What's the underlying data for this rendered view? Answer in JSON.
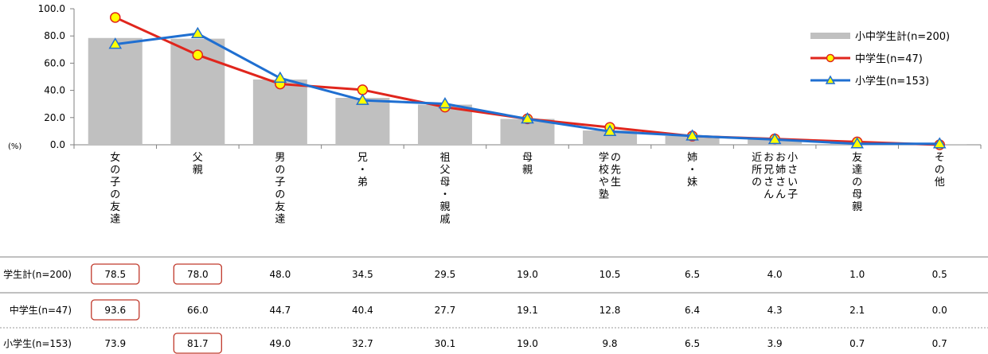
{
  "chart_data": {
    "type": "bar",
    "unit_label": "(%)",
    "ylim": [
      0,
      100
    ],
    "yticks": [
      "100.0",
      "80.0",
      "60.0",
      "40.0",
      "20.0",
      "0.0"
    ],
    "categories": [
      [
        "女の子の友達"
      ],
      [
        "父親"
      ],
      [
        "男の子の友達"
      ],
      [
        "兄・弟"
      ],
      [
        "祖父母・親戚"
      ],
      [
        "母親"
      ],
      [
        "の先生",
        "学校や塾"
      ],
      [
        "姉・妹"
      ],
      [
        "小さい子",
        "お姉さん",
        "お兄さん",
        "近所の"
      ],
      [
        "友達の母親"
      ],
      [
        "その他"
      ]
    ],
    "series": [
      {
        "name": "小中学生計(n=200)",
        "row_label": "学生計(n=200)",
        "kind": "bar",
        "color": "#c0c0c0",
        "values": [
          78.5,
          78.0,
          48.0,
          34.5,
          29.5,
          19.0,
          10.5,
          6.5,
          4.0,
          1.0,
          0.5
        ],
        "labels": [
          "78.5",
          "78.0",
          "48.0",
          "34.5",
          "29.5",
          "19.0",
          "10.5",
          "6.5",
          "4.0",
          "1.0",
          "0.5"
        ]
      },
      {
        "name": "中学生(n=47)",
        "row_label": "中学生(n=47)",
        "kind": "line",
        "color": "#e0261d",
        "marker": "circle",
        "marker_fill": "#ffff00",
        "values": [
          93.6,
          66.0,
          44.7,
          40.4,
          27.7,
          19.1,
          12.8,
          6.4,
          4.3,
          2.1,
          0.0
        ],
        "labels": [
          "93.6",
          "66.0",
          "44.7",
          "40.4",
          "27.7",
          "19.1",
          "12.8",
          "6.4",
          "4.3",
          "2.1",
          "0.0"
        ]
      },
      {
        "name": "小学生(n=153)",
        "row_label": "小学生(n=153)",
        "kind": "line",
        "color": "#1f6fd1",
        "marker": "triangle",
        "marker_fill": "#ffff00",
        "values": [
          73.9,
          81.7,
          49.0,
          32.7,
          30.1,
          19.0,
          9.8,
          6.5,
          3.9,
          0.7,
          0.7
        ],
        "labels": [
          "73.9",
          "81.7",
          "49.0",
          "32.7",
          "30.1",
          "19.0",
          "9.8",
          "6.5",
          "3.9",
          "0.7",
          "0.7"
        ]
      }
    ],
    "highlighted_cells": [
      [
        0,
        0
      ],
      [
        0,
        1
      ],
      [
        1,
        0
      ],
      [
        2,
        1
      ]
    ],
    "highlight_color": "#c0392b",
    "legend_position": "right"
  }
}
